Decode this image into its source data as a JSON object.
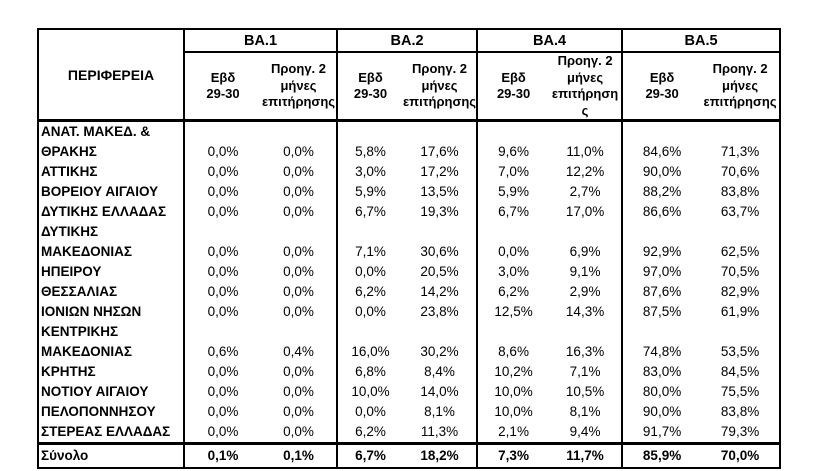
{
  "page": {
    "background": "#ffffff",
    "text_color": "#000000",
    "border_color": "#000000"
  },
  "table": {
    "region_header": "ΠΕΡΙΦΕΡΕΙΑ",
    "groups": [
      {
        "label": "BA.1",
        "week": "Εβδ\n29-30",
        "prev": "Προηγ. 2\nμήνες\nεπιτήρησης"
      },
      {
        "label": "BA.2",
        "week": "Εβδ\n29-30",
        "prev": "Προηγ. 2\nμήνες\nεπιτήρησης"
      },
      {
        "label": "BA.4",
        "week": "Εβδ\n29-30",
        "prev": "Προηγ. 2\nμήνες\nεπιτήρηση\nς"
      },
      {
        "label": "BA.5",
        "week": "Εβδ\n29-30",
        "prev": "Προηγ. 2\nμήνες\nεπιτήρησης"
      }
    ],
    "rows": [
      {
        "name": "ΑΝΑΤ. ΜΑΚΕΔ. &\nΘΡΑΚΗΣ",
        "values": [
          "0,0%",
          "0,0%",
          "5,8%",
          "17,6%",
          "9,6%",
          "11,0%",
          "84,6%",
          "71,3%"
        ]
      },
      {
        "name": "ΑΤΤΙΚΗΣ",
        "values": [
          "0,0%",
          "0,0%",
          "3,0%",
          "17,2%",
          "7,0%",
          "12,2%",
          "90,0%",
          "70,6%"
        ]
      },
      {
        "name": "ΒΟΡΕΙΟΥ ΑΙΓΑΙΟΥ",
        "values": [
          "0,0%",
          "0,0%",
          "5,9%",
          "13,5%",
          "5,9%",
          "2,7%",
          "88,2%",
          "83,8%"
        ]
      },
      {
        "name": "ΔΥΤΙΚΗΣ ΕΛΛΑΔΑΣ",
        "values": [
          "0,0%",
          "0,0%",
          "6,7%",
          "19,3%",
          "6,7%",
          "17,0%",
          "86,6%",
          "63,7%"
        ]
      },
      {
        "name": "ΔΥΤΙΚΗΣ\nΜΑΚΕΔΟΝΙΑΣ",
        "values": [
          "0,0%",
          "0,0%",
          "7,1%",
          "30,6%",
          "0,0%",
          "6,9%",
          "92,9%",
          "62,5%"
        ]
      },
      {
        "name": "ΗΠΕΙΡΟΥ",
        "values": [
          "0,0%",
          "0,0%",
          "0,0%",
          "20,5%",
          "3,0%",
          "9,1%",
          "97,0%",
          "70,5%"
        ]
      },
      {
        "name": "ΘΕΣΣΑΛΙΑΣ",
        "values": [
          "0,0%",
          "0,0%",
          "6,2%",
          "14,2%",
          "6,2%",
          "2,9%",
          "87,6%",
          "82,9%"
        ]
      },
      {
        "name": "ΙΟΝΙΩΝ ΝΗΣΩΝ",
        "values": [
          "0,0%",
          "0,0%",
          "0,0%",
          "23,8%",
          "12,5%",
          "14,3%",
          "87,5%",
          "61,9%"
        ]
      },
      {
        "name": "ΚΕΝΤΡΙΚΗΣ\nΜΑΚΕΔΟΝΙΑΣ",
        "values": [
          "0,6%",
          "0,4%",
          "16,0%",
          "30,2%",
          "8,6%",
          "16,3%",
          "74,8%",
          "53,5%"
        ]
      },
      {
        "name": "ΚΡΗΤΗΣ",
        "values": [
          "0,0%",
          "0,0%",
          "6,8%",
          "8,4%",
          "10,2%",
          "7,1%",
          "83,0%",
          "84,5%"
        ]
      },
      {
        "name": "ΝΟΤΙΟΥ ΑΙΓΑΙΟΥ",
        "values": [
          "0,0%",
          "0,0%",
          "10,0%",
          "14,0%",
          "10,0%",
          "10,5%",
          "80,0%",
          "75,5%"
        ]
      },
      {
        "name": "ΠΕΛΟΠΟΝΝΗΣΟΥ",
        "values": [
          "0,0%",
          "0,0%",
          "0,0%",
          "8,1%",
          "10,0%",
          "8,1%",
          "90,0%",
          "83,8%"
        ]
      },
      {
        "name": "ΣΤΕΡΕΑΣ ΕΛΛΑΔΑΣ",
        "values": [
          "0,0%",
          "0,0%",
          "6,2%",
          "11,3%",
          "2,1%",
          "9,4%",
          "91,7%",
          "79,3%"
        ]
      }
    ],
    "total": {
      "name": "Σύνολο",
      "values": [
        "0,1%",
        "0,1%",
        "6,7%",
        "18,2%",
        "7,3%",
        "11,7%",
        "85,9%",
        "70,0%"
      ]
    }
  }
}
